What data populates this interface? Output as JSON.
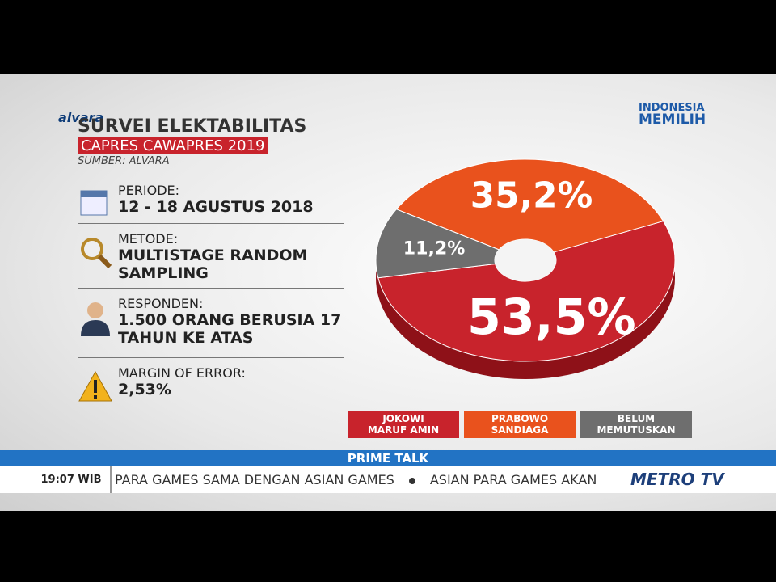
{
  "logo": "alvara",
  "badge": {
    "line1": "INDONESIA",
    "line2": "MEMILIH"
  },
  "panel": {
    "title": "SURVEI ELEKTABILITAS",
    "subtitle": "CAPRES CAWAPRES 2019",
    "source": "SUMBER: ALVARA",
    "items": [
      {
        "label": "PERIODE:",
        "value": "12 - 18 AGUSTUS 2018"
      },
      {
        "label": "METODE:",
        "value": "MULTISTAGE RANDOM SAMPLING"
      },
      {
        "label": "RESPONDEN:",
        "value": "1.500 ORANG BERUSIA 17 TAHUN KE ATAS"
      },
      {
        "label": "MARGIN OF ERROR:",
        "value": "2,53%"
      }
    ]
  },
  "chart_data": {
    "type": "pie",
    "categories": [
      "JOKOWI MARUF AMIN",
      "PRABOWO SANDIAGA",
      "BELUM MEMUTUSKAN"
    ],
    "values": [
      53.5,
      35.2,
      11.2
    ],
    "value_labels": [
      "53,5%",
      "35,2%",
      "11,2%"
    ],
    "colors": [
      "#c8232c",
      "#e9521d",
      "#6e6e6e"
    ]
  },
  "ticker": {
    "program": "PRIME TALK",
    "time": "19:07 WIB",
    "headlines": [
      "PARA GAMES SAMA DENGAN ASIAN GAMES",
      "ASIAN PARA GAMES AKAN"
    ],
    "channel": "METRO TV"
  }
}
